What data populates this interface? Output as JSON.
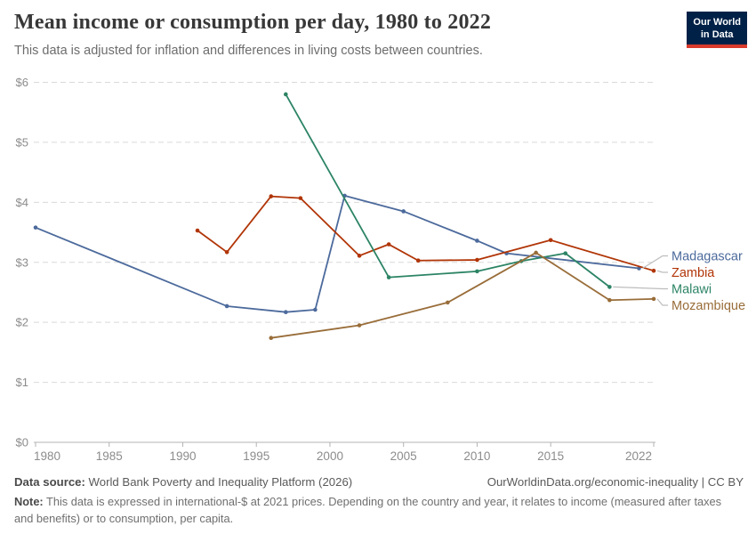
{
  "header": {
    "title": "Mean income or consumption per day, 1980 to 2022",
    "subtitle": "This data is adjusted for inflation and differences in living costs between countries.",
    "logo_line1": "Our World",
    "logo_line2": "in Data",
    "logo_bg_color": "#002147",
    "logo_bar_color": "#d93a2b"
  },
  "chart_data": {
    "type": "line",
    "title": "Mean income or consumption per day, 1980 to 2022",
    "xlabel": "",
    "ylabel": "",
    "xlim": [
      1980,
      2022
    ],
    "ylim": [
      0,
      6
    ],
    "x_ticks": [
      1980,
      1985,
      1990,
      1995,
      2000,
      2005,
      2010,
      2015,
      2022
    ],
    "y_tick_labels": [
      "$0",
      "$1",
      "$2",
      "$3",
      "$4",
      "$5",
      "$6"
    ],
    "grid": "horizontal-dashed",
    "legend_position": "right-of-line-ends",
    "series": [
      {
        "name": "Madagascar",
        "color": "#4C6A9C",
        "points": [
          [
            1980,
            3.58
          ],
          [
            1993,
            2.27
          ],
          [
            1997,
            2.17
          ],
          [
            1999,
            2.21
          ],
          [
            2001,
            4.11
          ],
          [
            2005,
            3.85
          ],
          [
            2010,
            3.36
          ],
          [
            2012,
            3.15
          ],
          [
            2021,
            2.9
          ]
        ]
      },
      {
        "name": "Zambia",
        "color": "#B13507",
        "points": [
          [
            1991,
            3.53
          ],
          [
            1993,
            3.17
          ],
          [
            1996,
            4.1
          ],
          [
            1998,
            4.07
          ],
          [
            2002,
            3.11
          ],
          [
            2004,
            3.3
          ],
          [
            2006,
            3.03
          ],
          [
            2010,
            3.04
          ],
          [
            2015,
            3.37
          ],
          [
            2022,
            2.86
          ]
        ]
      },
      {
        "name": "Malawi",
        "color": "#2C8465",
        "points": [
          [
            1997,
            5.8
          ],
          [
            2004,
            2.75
          ],
          [
            2010,
            2.85
          ],
          [
            2013,
            3.02
          ],
          [
            2016,
            3.15
          ],
          [
            2019,
            2.59
          ]
        ]
      },
      {
        "name": "Mozambique",
        "color": "#996D39",
        "points": [
          [
            1996,
            1.74
          ],
          [
            2002,
            1.95
          ],
          [
            2008,
            2.33
          ],
          [
            2014,
            3.16
          ],
          [
            2019,
            2.37
          ],
          [
            2022,
            2.39
          ]
        ]
      }
    ]
  },
  "footer": {
    "source_label": "Data source:",
    "source_text": " World Bank Poverty and Inequality Platform (2026)",
    "credit": "OurWorldinData.org/economic-inequality | CC BY",
    "note_label": "Note:",
    "note_text": " This data is expressed in international-$ at 2021 prices. Depending on the country and year, it relates to income (measured after taxes and benefits) or to consumption, per capita."
  }
}
